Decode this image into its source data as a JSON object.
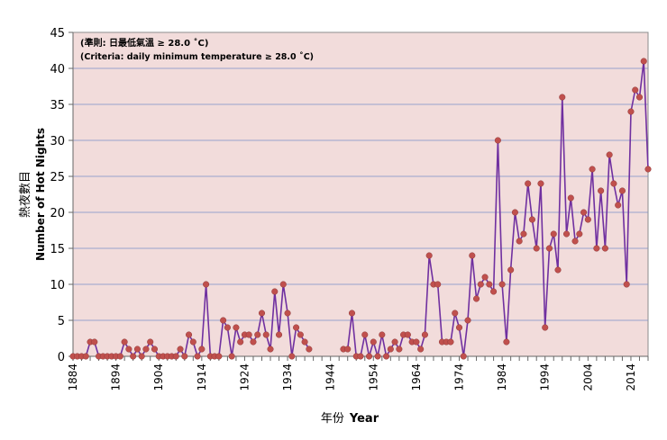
{
  "chart_data": {
    "type": "line",
    "annotation_zh": "(準則: 日最低氣溫 ≥ 28.0 ˚C)",
    "annotation_en": "(Criteria: daily minimum temperature ≥ 28.0 ˚C)",
    "ylabel_zh": "熱夜數目",
    "ylabel_en": "Number of Hot Nights",
    "xlabel_zh": "年份",
    "xlabel_en": "Year",
    "ylim": [
      0,
      45
    ],
    "yticks": [
      0,
      5,
      10,
      15,
      20,
      25,
      30,
      35,
      40,
      45
    ],
    "xlim": [
      1884,
      2018
    ],
    "xticks": [
      1884,
      1894,
      1904,
      1914,
      1924,
      1934,
      1944,
      1954,
      1964,
      1974,
      1984,
      1994,
      2004,
      2014
    ],
    "grid": "horizontal",
    "colors": {
      "plot_bg": "#f2dcdb",
      "line": "#7030a0",
      "marker": "#c0504d",
      "grid": "#7a8fc8"
    },
    "segments": [
      {
        "x": [
          1884,
          1885,
          1886,
          1887,
          1888,
          1889,
          1890,
          1891,
          1892,
          1893,
          1894,
          1895,
          1896,
          1897,
          1898,
          1899,
          1900,
          1901,
          1902,
          1903,
          1904,
          1905,
          1906,
          1907,
          1908,
          1909,
          1910,
          1911,
          1912,
          1913,
          1914,
          1915,
          1916,
          1917,
          1918,
          1919,
          1920,
          1921,
          1922,
          1923,
          1924,
          1925,
          1926,
          1927,
          1928,
          1929,
          1930,
          1931,
          1932,
          1933,
          1934,
          1935,
          1936,
          1937,
          1938,
          1939
        ],
        "y": [
          0,
          0,
          0,
          0,
          2,
          2,
          0,
          0,
          0,
          0,
          0,
          0,
          2,
          1,
          0,
          1,
          0,
          1,
          2,
          1,
          0,
          0,
          0,
          0,
          0,
          1,
          0,
          3,
          2,
          0,
          1,
          10,
          0,
          0,
          0,
          5,
          4,
          0,
          4,
          2,
          3,
          3,
          2,
          3,
          6,
          3,
          1,
          9,
          3,
          10,
          6,
          0,
          4,
          3,
          2,
          1
        ]
      },
      {
        "x": [
          1947,
          1948,
          1949,
          1950,
          1951,
          1952,
          1953,
          1954,
          1955,
          1956,
          1957,
          1958,
          1959,
          1960,
          1961,
          1962,
          1963,
          1964,
          1965,
          1966,
          1967,
          1968,
          1969,
          1970,
          1971,
          1972,
          1973,
          1974,
          1975,
          1976,
          1977,
          1978,
          1979,
          1980,
          1981,
          1982,
          1983,
          1984,
          1985,
          1986,
          1987,
          1988,
          1989,
          1990,
          1991,
          1992,
          1993,
          1994,
          1995,
          1996,
          1997,
          1998,
          1999,
          2000,
          2001,
          2002,
          2003,
          2004,
          2005,
          2006,
          2007,
          2008,
          2009,
          2010,
          2011,
          2012,
          2013,
          2014,
          2015,
          2016,
          2017,
          2018
        ],
        "y": [
          1,
          1,
          6,
          0,
          0,
          3,
          0,
          2,
          0,
          3,
          0,
          1,
          2,
          1,
          3,
          3,
          2,
          2,
          1,
          3,
          14,
          10,
          10,
          2,
          2,
          2,
          6,
          4,
          0,
          5,
          14,
          8,
          10,
          11,
          10,
          9,
          30,
          10,
          2,
          12,
          20,
          16,
          17,
          24,
          19,
          15,
          24,
          4,
          15,
          17,
          12,
          36,
          17,
          22,
          16,
          17,
          20,
          19,
          26,
          15,
          23,
          15,
          28,
          24,
          21,
          23,
          10,
          34,
          37,
          36,
          41,
          26
        ]
      }
    ]
  }
}
